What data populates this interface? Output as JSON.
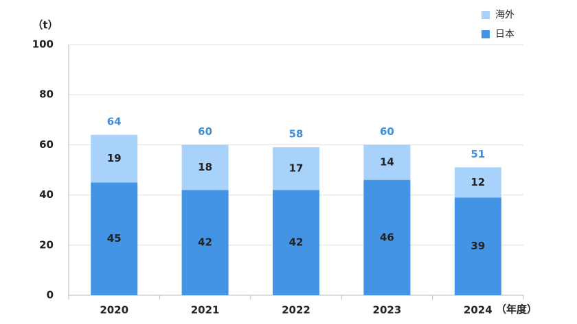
{
  "chart_data": {
    "type": "stacked-bar",
    "y_unit_label": "（t）",
    "x_unit_label": "（年度）",
    "categories": [
      "2020",
      "2021",
      "2022",
      "2023",
      "2024"
    ],
    "series": [
      {
        "name": "日本",
        "color": "#4394e5",
        "values": [
          45,
          42,
          42,
          46,
          39
        ]
      },
      {
        "name": "海外",
        "color": "#a9d2fa",
        "values": [
          19,
          18,
          17,
          14,
          12
        ]
      }
    ],
    "totals": [
      64,
      60,
      58,
      60,
      51
    ],
    "totals_color": "#3d8fd8",
    "ylim": [
      0,
      100
    ],
    "yticks": [
      0,
      20,
      40,
      60,
      80,
      100
    ],
    "grid": true,
    "legend": "top-right"
  }
}
